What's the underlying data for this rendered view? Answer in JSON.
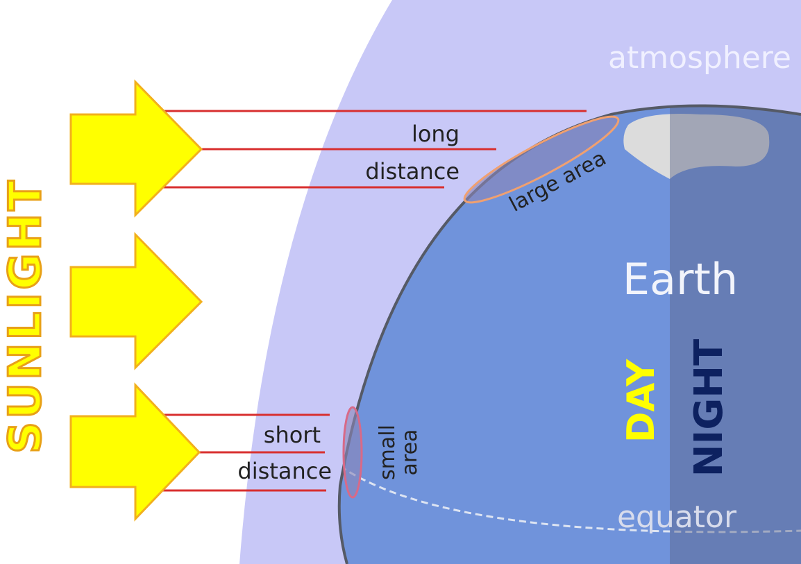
{
  "labels": {
    "sunlight": "SUNLIGHT",
    "atmosphere": "atmosphere",
    "long": "long",
    "long_distance": "distance",
    "large_area": "large area",
    "earth": "Earth",
    "day": "DAY",
    "night": "NIGHT",
    "short": "short",
    "short_distance": "distance",
    "small": "small",
    "area": "area",
    "equator": "equator"
  }
}
